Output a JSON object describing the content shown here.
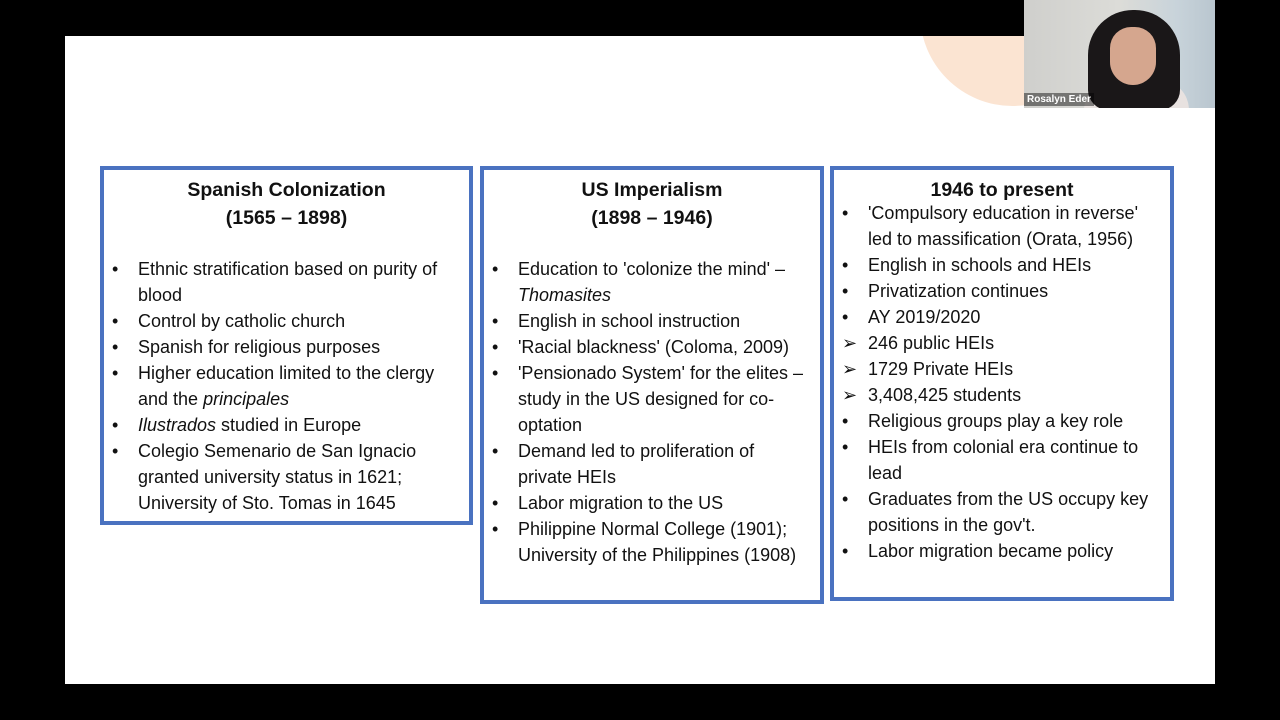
{
  "colors": {
    "box_border": "#4a72c0",
    "slide_bg": "#ffffff",
    "accent_shape": "#fbe4d2"
  },
  "video": {
    "participant_name": "Rosalyn Eder"
  },
  "columns": [
    {
      "title": "Spanish Colonization",
      "subtitle": "(1565 – 1898)",
      "items": [
        {
          "marker": "•",
          "parts": [
            {
              "text": "Ethnic stratification based on purity of blood"
            }
          ]
        },
        {
          "marker": "•",
          "parts": [
            {
              "text": "Control by catholic church"
            }
          ]
        },
        {
          "marker": "•",
          "parts": [
            {
              "text": "Spanish for religious purposes"
            }
          ]
        },
        {
          "marker": "•",
          "parts": [
            {
              "text": "Higher education limited to the clergy and the "
            },
            {
              "text": "principales",
              "italic": true
            }
          ]
        },
        {
          "marker": "•",
          "parts": [
            {
              "text": "Ilustrados",
              "italic": true
            },
            {
              "text": " studied in Europe"
            }
          ]
        },
        {
          "marker": "•",
          "parts": [
            {
              "text": "Colegio Semenario de San Ignacio granted university status in 1621; University of Sto. Tomas in 1645"
            }
          ]
        }
      ]
    },
    {
      "title": "US Imperialism",
      "subtitle": "(1898 – 1946)",
      "items": [
        {
          "marker": "•",
          "parts": [
            {
              "text": "Education to 'colonize the mind' – "
            },
            {
              "text": "Thomasites",
              "italic": true
            }
          ]
        },
        {
          "marker": "•",
          "parts": [
            {
              "text": "English in school instruction"
            }
          ]
        },
        {
          "marker": "•",
          "parts": [
            {
              "text": "'Racial blackness' (Coloma, 2009)"
            }
          ]
        },
        {
          "marker": "•",
          "parts": [
            {
              "text": "'Pensionado System' for the elites – study in the US designed for co-optation"
            }
          ]
        },
        {
          "marker": "•",
          "parts": [
            {
              "text": "Demand led to proliferation of private HEIs"
            }
          ]
        },
        {
          "marker": "•",
          "parts": [
            {
              "text": "Labor migration to the US"
            }
          ]
        },
        {
          "marker": "•",
          "parts": [
            {
              "text": "Philippine Normal College (1901); University of the Philippines (1908)"
            }
          ]
        }
      ]
    },
    {
      "title": "1946 to present",
      "subtitle": "",
      "items": [
        {
          "marker": "•",
          "parts": [
            {
              "text": "'Compulsory education in reverse' led to massification (Orata, 1956)"
            }
          ]
        },
        {
          "marker": "•",
          "parts": [
            {
              "text": "English in schools and HEIs"
            }
          ]
        },
        {
          "marker": "•",
          "parts": [
            {
              "text": "Privatization continues"
            }
          ]
        },
        {
          "marker": "•",
          "parts": [
            {
              "text": "AY 2019/2020"
            }
          ]
        },
        {
          "marker": "➢",
          "parts": [
            {
              "text": "246 public HEIs"
            }
          ]
        },
        {
          "marker": "➢",
          "parts": [
            {
              "text": "1729 Private HEIs"
            }
          ]
        },
        {
          "marker": "➢",
          "parts": [
            {
              "text": "3,408,425 students"
            }
          ]
        },
        {
          "marker": "•",
          "parts": [
            {
              "text": "Religious groups play a key role"
            }
          ]
        },
        {
          "marker": "•",
          "parts": [
            {
              "text": "HEIs from colonial era continue to lead"
            }
          ]
        },
        {
          "marker": "•",
          "parts": [
            {
              "text": "Graduates from the US occupy key positions in the gov't."
            }
          ]
        },
        {
          "marker": "•",
          "parts": [
            {
              "text": "Labor migration became policy"
            }
          ]
        }
      ]
    }
  ]
}
